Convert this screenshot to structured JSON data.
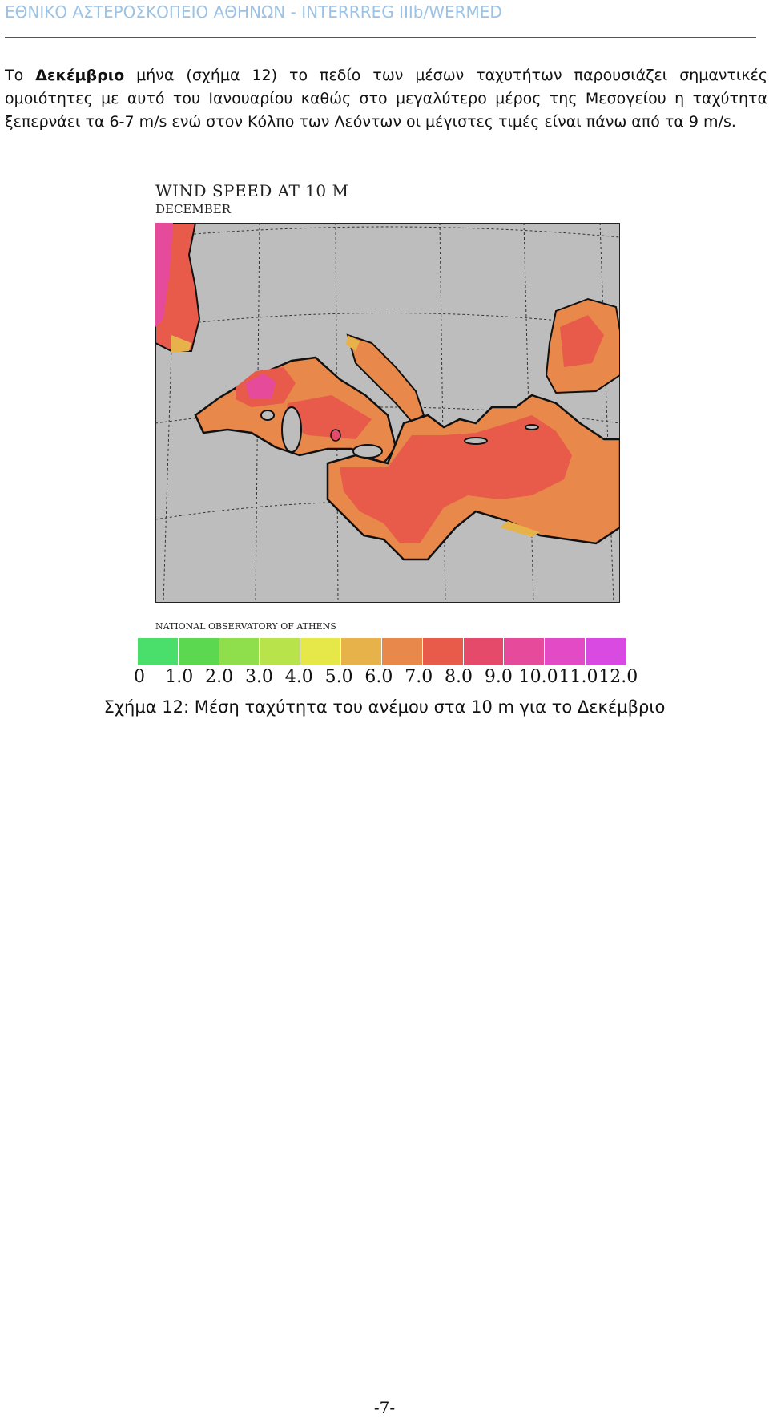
{
  "header": {
    "title": "ΕΘΝΙΚΟ ΑΣΤΕΡΟΣΚΟΠΕΙΟ ΑΘΗΝΩΝ - INTERRREG IIIb/WERMED"
  },
  "body": {
    "para_start": "Το ",
    "para_bold": "Δεκέμβριο",
    "para_rest": " μήνα (σχήμα 12) το πεδίο των μέσων ταχυτήτων παρουσιάζει σημαντικές ομοιότητες με αυτό του Ιανουαρίου καθώς στο μεγαλύτερο μέρος της Μεσογείου η ταχύτητα ξεπερνάει τα 6-7 m/s ενώ στον Κόλπο των Λεόντων οι μέγιστες τιμές είναι πάνω από τα 9 m/s."
  },
  "figure": {
    "title": "WIND SPEED AT 10 M",
    "subtitle": "DECEMBER",
    "credit": "NATIONAL OBSERVATORY OF ATHENS",
    "caption": "Σχήμα 12: Μέση ταχύτητα του ανέμου στα 10 m για το Δεκέμβριο",
    "legend_labels": [
      "0",
      "1.0",
      "2.0",
      "3.0",
      "4.0",
      "5.0",
      "6.0",
      "7.0",
      "8.0",
      "9.0",
      "10.0",
      "11.0",
      "12.0"
    ],
    "legend_colors": [
      "#4ade6a",
      "#5bd84f",
      "#8fdf4c",
      "#b8e34a",
      "#e6e84a",
      "#e8b24a",
      "#e8884a",
      "#e85a4a",
      "#e64a6a",
      "#e64a9a",
      "#e24ac6",
      "#d84ae2"
    ],
    "colors": {
      "land": "#bdbdbd",
      "sea_low": "#e8884a",
      "sea_mid": "#e85a4a",
      "sea_high": "#e64a9a",
      "sea_coast": "#e8b24a"
    }
  },
  "footer": {
    "page_number": "-7-"
  }
}
